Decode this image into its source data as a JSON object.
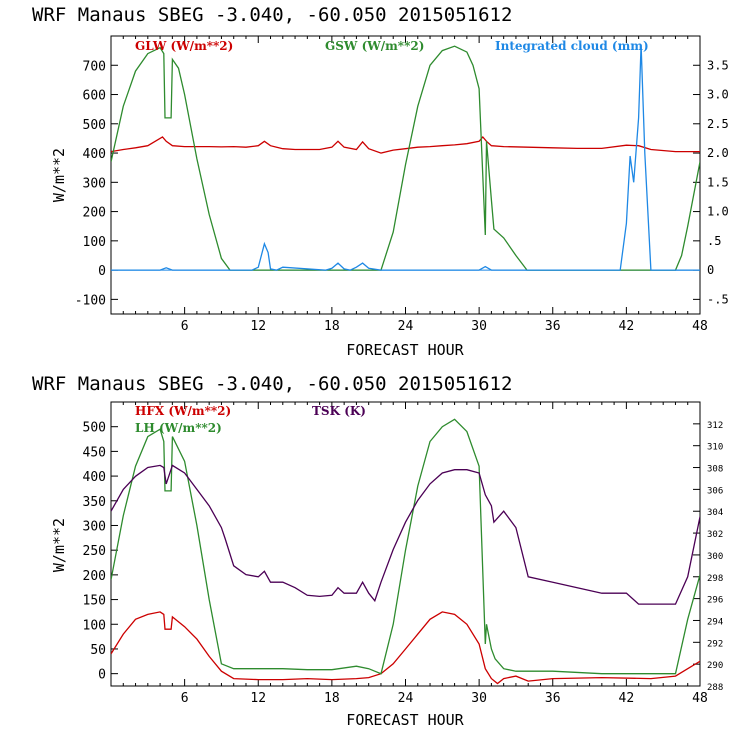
{
  "chart_data": [
    {
      "type": "line",
      "title": "WRF   Manaus SBEG   -3.040, -60.050  2015051612",
      "xlabel": "FORECAST HOUR",
      "ylabel": "W/m**2",
      "xlim": [
        0,
        48
      ],
      "ylim": [
        -150,
        800
      ],
      "y2lim": [
        -0.75,
        4.0
      ],
      "x_ticks": [
        "6",
        "12",
        "18",
        "24",
        "30",
        "36",
        "42",
        "48"
      ],
      "y_ticks": [
        "-100",
        "0",
        "100",
        "200",
        "300",
        "400",
        "500",
        "600",
        "700"
      ],
      "y2_ticks": [
        "-.5",
        "0",
        ".5",
        "1.0",
        "1.5",
        "2.0",
        "2.5",
        "3.0",
        "3.5"
      ],
      "legend": [
        {
          "label": "GLW (W/m**2)",
          "color": "#cc0000"
        },
        {
          "label": "GSW (W/m**2)",
          "color": "#2e8b2e"
        },
        {
          "label": "Integrated cloud (mm)",
          "color": "#1e88e5"
        }
      ],
      "series": [
        {
          "name": "GLW (W/m**2)",
          "color": "#cc0000",
          "axis": "left",
          "x": [
            0,
            1,
            2,
            3,
            3.6,
            4.2,
            4.5,
            5,
            6,
            7,
            8,
            9,
            10,
            11,
            12,
            12.5,
            13,
            13.5,
            14,
            15,
            16,
            17,
            18,
            18.5,
            19,
            20,
            20.5,
            21,
            22,
            23,
            24,
            25,
            26,
            27,
            28,
            29,
            30,
            30.3,
            30.6,
            31,
            32,
            34,
            36,
            38,
            40,
            42,
            43,
            44,
            46,
            48
          ],
          "y": [
            405,
            412,
            418,
            425,
            440,
            455,
            440,
            425,
            422,
            422,
            422,
            421,
            422,
            420,
            425,
            440,
            425,
            420,
            415,
            412,
            412,
            412,
            420,
            440,
            420,
            412,
            438,
            415,
            400,
            410,
            415,
            420,
            422,
            425,
            428,
            432,
            440,
            455,
            440,
            425,
            422,
            420,
            418,
            416,
            416,
            427,
            425,
            412,
            405,
            405
          ]
        },
        {
          "name": "GSW (W/m**2)",
          "color": "#2e8b2e",
          "axis": "left",
          "x": [
            0,
            1,
            2,
            3,
            4,
            4.3,
            4.4,
            4.9,
            5,
            5.5,
            6,
            7,
            8,
            9,
            9.7,
            10,
            22,
            23,
            24,
            25,
            26,
            27,
            28,
            29,
            29.5,
            30,
            30.5,
            30.6,
            31,
            31.2,
            32,
            33,
            33.9,
            34,
            46,
            46.5,
            47,
            48
          ],
          "y": [
            370,
            560,
            680,
            740,
            760,
            740,
            520,
            520,
            720,
            690,
            600,
            380,
            190,
            40,
            0,
            0,
            0,
            130,
            360,
            560,
            700,
            750,
            765,
            745,
            700,
            620,
            120,
            440,
            240,
            140,
            110,
            50,
            0,
            0,
            0,
            50,
            150,
            370
          ]
        },
        {
          "name": "Integrated cloud (mm)",
          "color": "#1e88e5",
          "axis": "right",
          "x": [
            0,
            4,
            4.5,
            5,
            11.5,
            12,
            12.5,
            12.8,
            13,
            13.5,
            14,
            17.5,
            18,
            18.5,
            19,
            19.5,
            20,
            20.5,
            21,
            22,
            30,
            30.5,
            31,
            41.5,
            42,
            42.3,
            42.6,
            43,
            43.2,
            43.5,
            44,
            48
          ],
          "y": [
            0,
            0,
            0.04,
            0,
            0,
            0.05,
            0.45,
            0.3,
            0.02,
            0,
            0.05,
            0,
            0.03,
            0.12,
            0.02,
            0,
            0.05,
            0.12,
            0.03,
            0,
            0,
            0.06,
            0,
            0,
            0.8,
            1.95,
            1.5,
            2.6,
            3.85,
            2.0,
            0,
            0
          ]
        }
      ]
    },
    {
      "type": "line",
      "title": "WRF   Manaus SBEG   -3.040, -60.050  2015051612",
      "xlabel": "FORECAST HOUR",
      "ylabel": "W/m**2",
      "xlim": [
        0,
        48
      ],
      "ylim": [
        -25,
        550
      ],
      "y2lim": [
        288,
        314
      ],
      "x_ticks": [
        "6",
        "12",
        "18",
        "24",
        "30",
        "36",
        "42",
        "48"
      ],
      "y_ticks": [
        "0",
        "50",
        "100",
        "150",
        "200",
        "250",
        "300",
        "350",
        "400",
        "450",
        "500"
      ],
      "y2_ticks": [
        "288",
        "290",
        "292",
        "294",
        "296",
        "298",
        "300",
        "302",
        "304",
        "306",
        "308",
        "310",
        "312"
      ],
      "legend": [
        {
          "label": "HFX (W/m**2)",
          "color": "#cc0000"
        },
        {
          "label": "LH  (W/m**2)",
          "color": "#2e8b2e"
        },
        {
          "label": "TSK (K)",
          "color": "#4b0055"
        }
      ],
      "series": [
        {
          "name": "HFX (W/m**2)",
          "color": "#cc0000",
          "axis": "left",
          "x": [
            0,
            1,
            2,
            3,
            4,
            4.3,
            4.4,
            4.9,
            5,
            6,
            7,
            8,
            9,
            10,
            12,
            14,
            16,
            18,
            20,
            21,
            22,
            23,
            24,
            25,
            26,
            27,
            28,
            29,
            30,
            30.5,
            31,
            31.5,
            32,
            33,
            34,
            36,
            40,
            44,
            46,
            47,
            48
          ],
          "y": [
            40,
            80,
            110,
            120,
            125,
            120,
            90,
            90,
            115,
            95,
            70,
            35,
            5,
            -10,
            -12,
            -12,
            -10,
            -12,
            -10,
            -8,
            0,
            20,
            50,
            80,
            110,
            125,
            120,
            100,
            60,
            10,
            -10,
            -20,
            -10,
            -5,
            -15,
            -10,
            -8,
            -10,
            -5,
            10,
            25
          ]
        },
        {
          "name": "LH  (W/m**2)",
          "color": "#2e8b2e",
          "axis": "left",
          "x": [
            0,
            1,
            2,
            3,
            4,
            4.3,
            4.4,
            4.9,
            5,
            6,
            7,
            8,
            9,
            10,
            12,
            14,
            16,
            18,
            20,
            21,
            22,
            23,
            24,
            25,
            26,
            27,
            28,
            29,
            30,
            30.5,
            30.6,
            31,
            31.3,
            32,
            33,
            34,
            36,
            40,
            44,
            46,
            47,
            48
          ],
          "y": [
            190,
            320,
            420,
            480,
            495,
            470,
            370,
            370,
            480,
            430,
            300,
            150,
            20,
            10,
            10,
            10,
            8,
            8,
            15,
            10,
            0,
            100,
            250,
            380,
            470,
            500,
            515,
            490,
            420,
            60,
            100,
            50,
            30,
            10,
            5,
            5,
            5,
            0,
            0,
            0,
            110,
            200
          ]
        },
        {
          "name": "TSK (K)",
          "color": "#4b0055",
          "axis": "right",
          "x": [
            0,
            1,
            2,
            3,
            4,
            4.3,
            4.5,
            5,
            6,
            7,
            8,
            9,
            9.3,
            10,
            11,
            12,
            12.5,
            13,
            14,
            15,
            16,
            17,
            18,
            18.5,
            19,
            20,
            20.5,
            21,
            21.5,
            22,
            23,
            24,
            25,
            26,
            27,
            28,
            29,
            30,
            30.5,
            31,
            31.2,
            32,
            33,
            34,
            36,
            38,
            40,
            42,
            43,
            44,
            46,
            47,
            48
          ],
          "y": [
            304,
            306,
            307.2,
            308,
            308.2,
            308,
            306.5,
            308.2,
            307.5,
            306,
            304.5,
            302.5,
            301.5,
            299,
            298.2,
            298,
            298.5,
            297.5,
            297.5,
            297,
            296.3,
            296.2,
            296.3,
            297,
            296.5,
            296.5,
            297.5,
            296.5,
            295.8,
            297.5,
            300.5,
            303,
            305,
            306.5,
            307.5,
            307.8,
            307.8,
            307.5,
            305.5,
            304.5,
            303,
            304,
            302.5,
            298,
            297.5,
            297,
            296.5,
            296.5,
            295.5,
            295.5,
            295.5,
            298,
            303.5
          ]
        }
      ]
    }
  ]
}
